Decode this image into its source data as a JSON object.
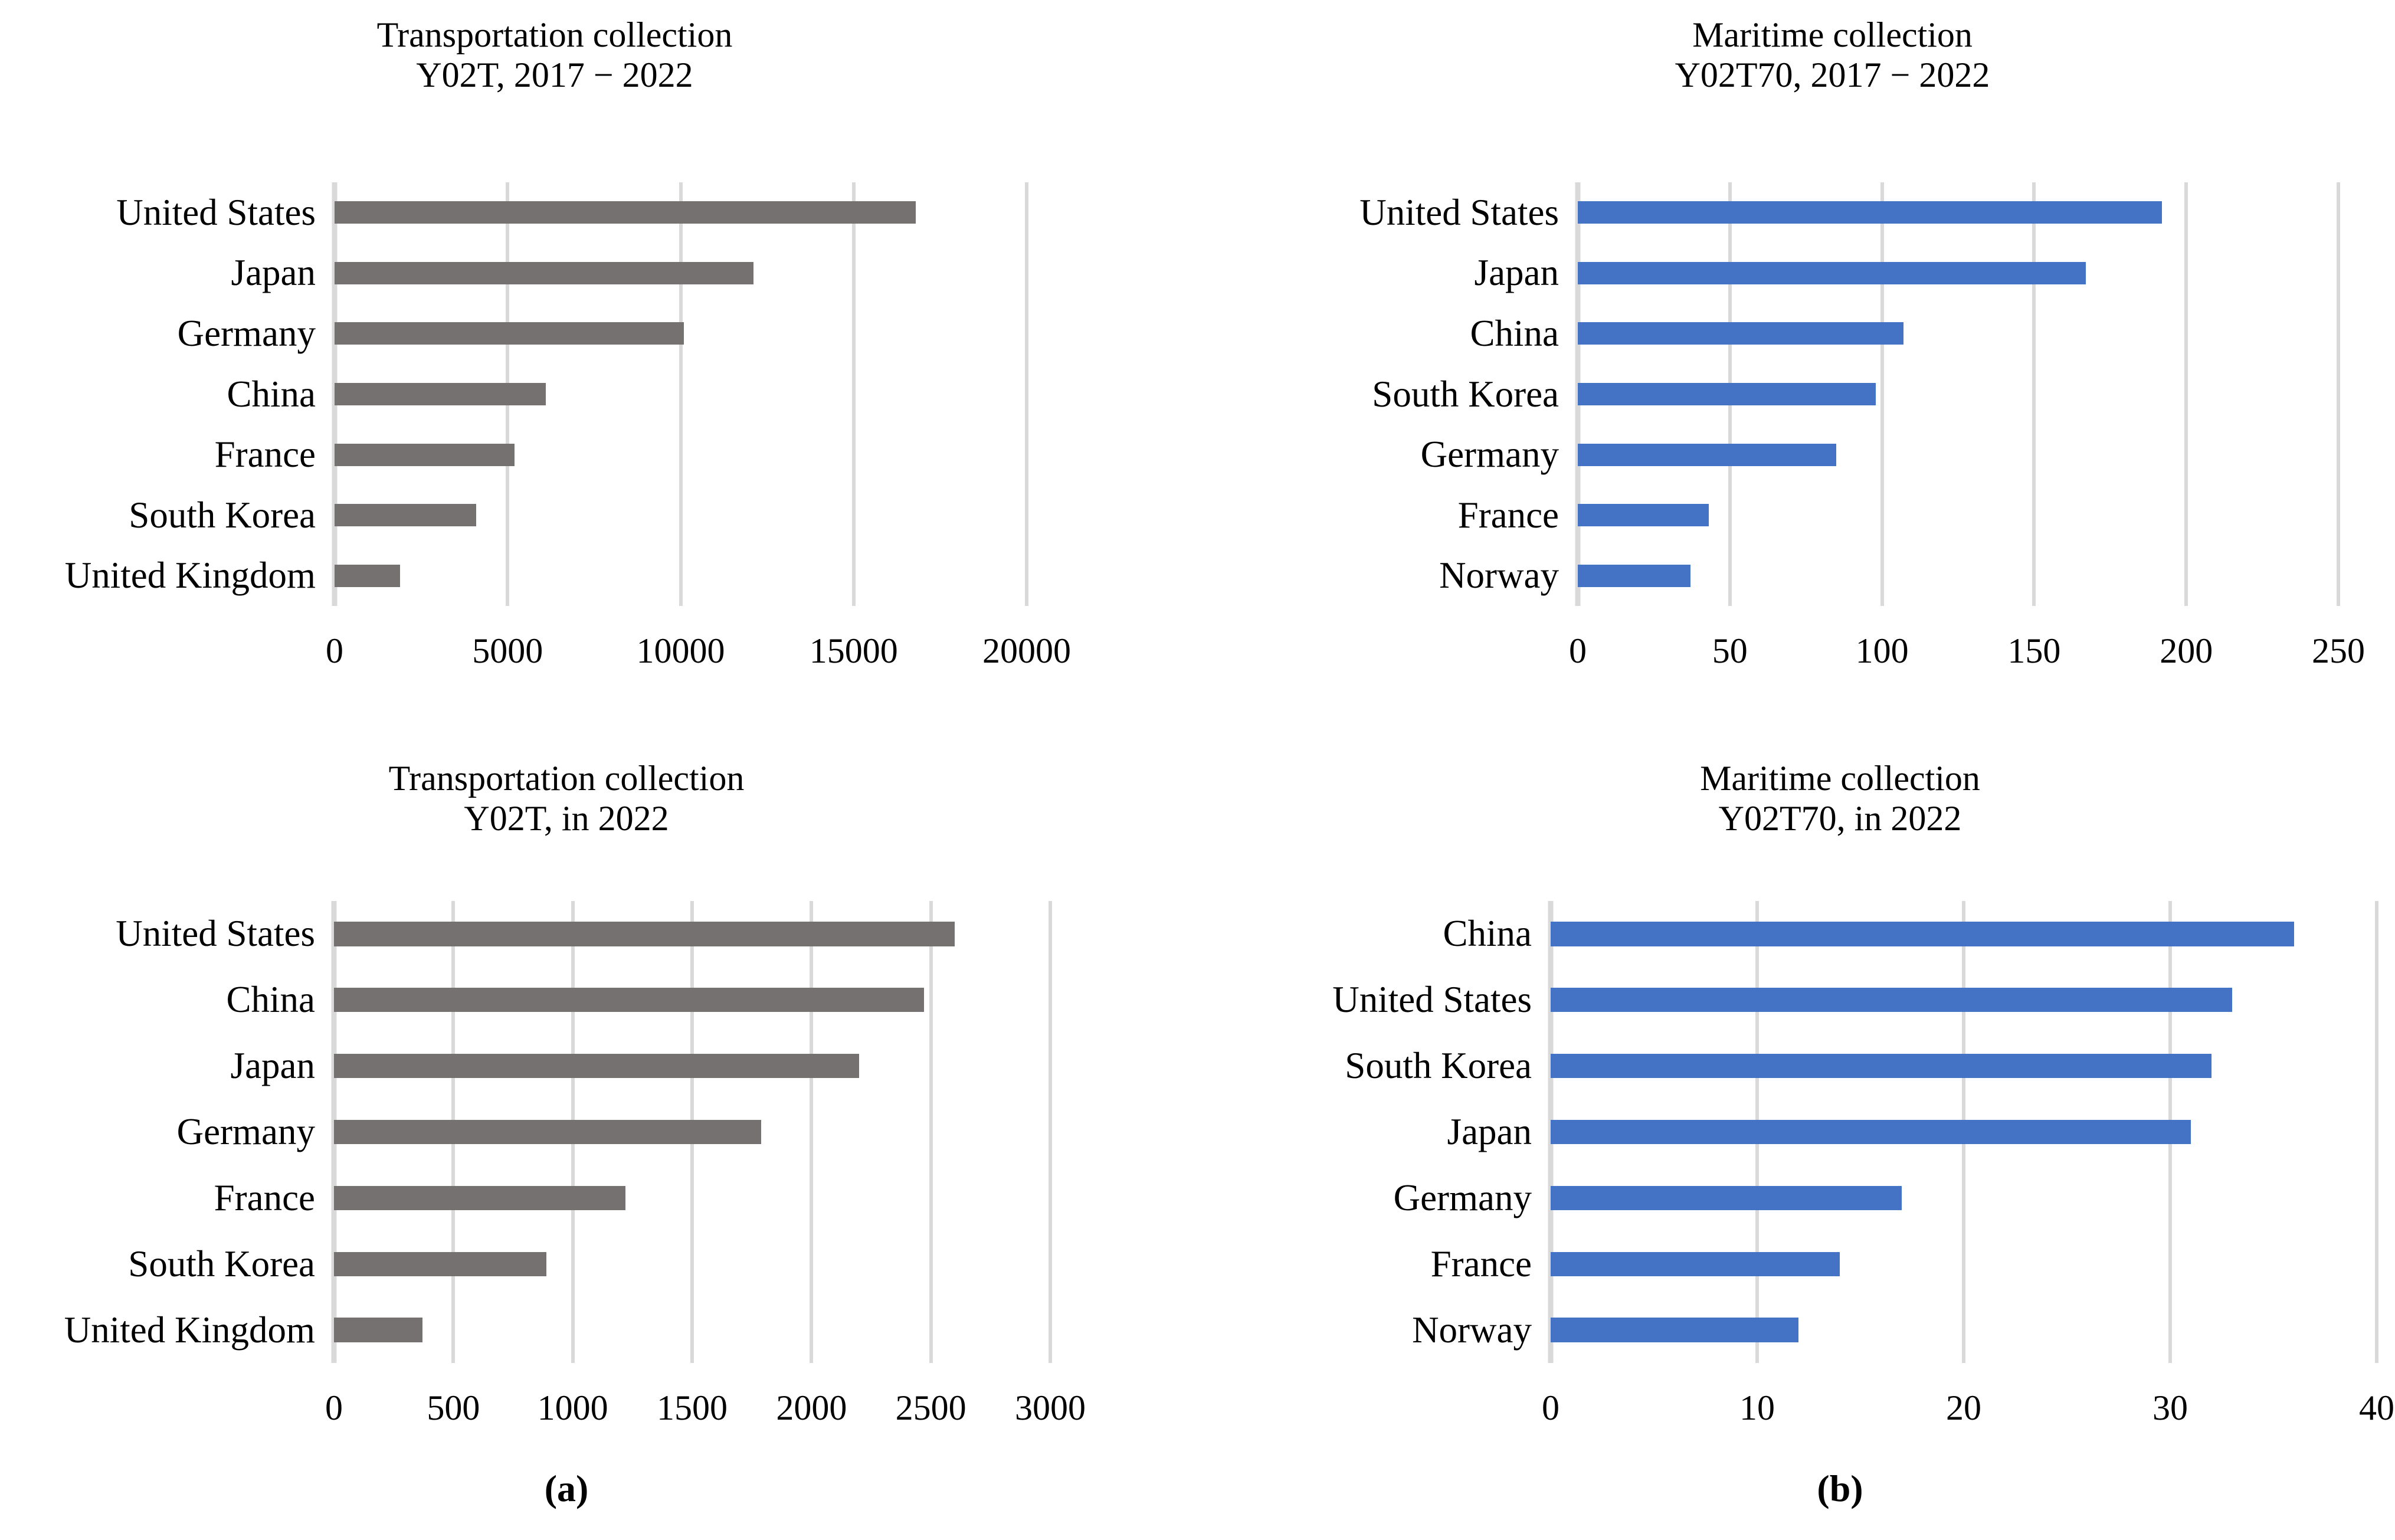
{
  "figure": {
    "panel_a_label": "(a)",
    "panel_b_label": "(b)"
  },
  "colors": {
    "gray_bar": "#767171",
    "blue_bar": "#4472C4",
    "gridline": "#D9D9D9",
    "text": "#000000",
    "background": "#FFFFFF"
  },
  "chart_data": [
    {
      "id": "chart1",
      "type": "bar",
      "orientation": "horizontal",
      "title": "Transportation collection",
      "subtitle": "Y02T, 2017 − 2022",
      "categories": [
        "United States",
        "Japan",
        "Germany",
        "China",
        "France",
        "South Korea",
        "United Kingdom"
      ],
      "values": [
        16800,
        12100,
        10100,
        6100,
        5200,
        4100,
        1900
      ],
      "ticks": [
        0,
        5000,
        10000,
        15000,
        20000
      ],
      "xlim": [
        0,
        20000
      ],
      "bar_color": "#767171",
      "grid": true,
      "legend": "none"
    },
    {
      "id": "chart2",
      "type": "bar",
      "orientation": "horizontal",
      "title": "Maritime collection",
      "subtitle": "Y02T70, 2017 − 2022",
      "categories": [
        "United States",
        "Japan",
        "China",
        "South Korea",
        "Germany",
        "France",
        "Norway"
      ],
      "values": [
        192,
        167,
        107,
        98,
        85,
        43,
        37
      ],
      "ticks": [
        0,
        50,
        100,
        150,
        200,
        250
      ],
      "xlim": [
        0,
        250
      ],
      "bar_color": "#4472C4",
      "grid": true,
      "legend": "none"
    },
    {
      "id": "chart3",
      "type": "bar",
      "orientation": "horizontal",
      "title": "Transportation collection",
      "subtitle": "Y02T, in 2022",
      "categories": [
        "United States",
        "China",
        "Japan",
        "Germany",
        "France",
        "South Korea",
        "United Kingdom"
      ],
      "values": [
        2600,
        2470,
        2200,
        1790,
        1220,
        890,
        370
      ],
      "ticks": [
        0,
        500,
        1000,
        1500,
        2000,
        2500,
        3000
      ],
      "xlim": [
        0,
        3000
      ],
      "bar_color": "#767171",
      "grid": true,
      "legend": "none"
    },
    {
      "id": "chart4",
      "type": "bar",
      "orientation": "horizontal",
      "title": "Maritime collection",
      "subtitle": "Y02T70, in 2022",
      "categories": [
        "China",
        "United States",
        "South Korea",
        "Japan",
        "Germany",
        "France",
        "Norway"
      ],
      "values": [
        36,
        33,
        32,
        31,
        17,
        14,
        12
      ],
      "ticks": [
        0,
        10,
        20,
        30,
        40
      ],
      "xlim": [
        0,
        40
      ],
      "bar_color": "#4472C4",
      "grid": true,
      "legend": "none"
    }
  ]
}
